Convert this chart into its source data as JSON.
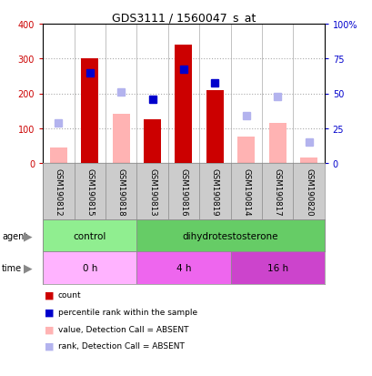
{
  "title": "GDS3111 / 1560047_s_at",
  "samples": [
    "GSM190812",
    "GSM190815",
    "GSM190818",
    "GSM190813",
    "GSM190816",
    "GSM190819",
    "GSM190814",
    "GSM190817",
    "GSM190820"
  ],
  "count_present": [
    null,
    300,
    null,
    125,
    340,
    210,
    null,
    null,
    null
  ],
  "count_absent": [
    45,
    null,
    140,
    null,
    null,
    null,
    75,
    115,
    15
  ],
  "rank_present": [
    null,
    260,
    null,
    183,
    270,
    230,
    null,
    null,
    null
  ],
  "rank_absent": [
    115,
    null,
    205,
    null,
    null,
    null,
    135,
    190,
    60
  ],
  "ylim": [
    0,
    400
  ],
  "yticks": [
    0,
    100,
    200,
    300,
    400
  ],
  "ytick_labels": [
    "0",
    "100",
    "200",
    "300",
    "400"
  ],
  "y2ticks": [
    0,
    25,
    50,
    75,
    100
  ],
  "y2tick_labels": [
    "0",
    "25",
    "50",
    "75",
    "100%"
  ],
  "agent_groups": [
    {
      "label": "control",
      "start": 0,
      "end": 3,
      "color": "#90EE90"
    },
    {
      "label": "dihydrotestosterone",
      "start": 3,
      "end": 9,
      "color": "#66CC66"
    }
  ],
  "time_groups": [
    {
      "label": "0 h",
      "start": 0,
      "end": 3,
      "color": "#FFB3FF"
    },
    {
      "label": "4 h",
      "start": 3,
      "end": 6,
      "color": "#EE66EE"
    },
    {
      "label": "16 h",
      "start": 6,
      "end": 9,
      "color": "#CC44CC"
    }
  ],
  "color_count_present": "#CC0000",
  "color_count_absent": "#FFB3B3",
  "color_rank_present": "#0000CC",
  "color_rank_absent": "#B3B3EE",
  "plot_bg": "#FFFFFF",
  "grid_color": "#AAAAAA",
  "sample_bg": "#CCCCCC"
}
